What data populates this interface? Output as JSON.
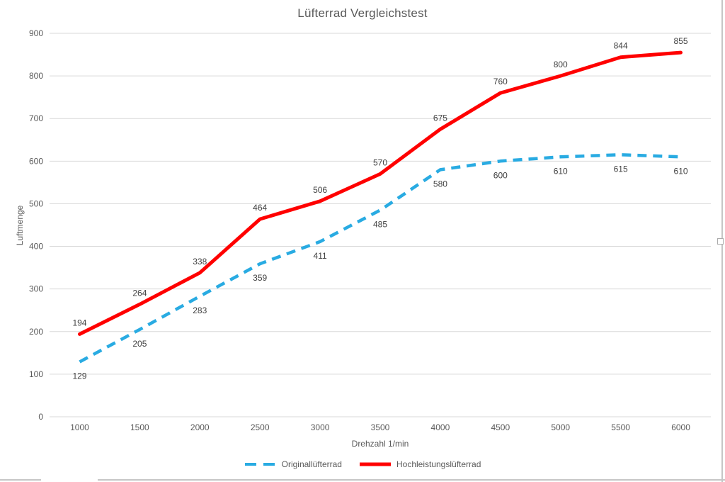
{
  "chart_data": {
    "type": "line",
    "title": "Lüfterrad Vergleichstest",
    "xlabel": "Drehzahl 1/min",
    "ylabel": "Luftmenge",
    "categories": [
      1000,
      1500,
      2000,
      2500,
      3000,
      3500,
      4000,
      4500,
      5000,
      5500,
      6000
    ],
    "series": [
      {
        "name": "Originallüfterrad",
        "color": "#29ABE2",
        "line_style": "dashed",
        "line_width": 4.5,
        "label_position": "below",
        "values": [
          129,
          205,
          283,
          359,
          411,
          485,
          580,
          600,
          610,
          615,
          610
        ]
      },
      {
        "name": "Hochleistungslüfterrad",
        "color": "#FF0000",
        "line_style": "solid",
        "line_width": 5,
        "label_position": "above",
        "values": [
          194,
          264,
          338,
          464,
          506,
          570,
          675,
          760,
          800,
          844,
          855
        ]
      }
    ],
    "ylim": [
      0,
      900
    ],
    "ytick_step": 100,
    "grid": true,
    "data_labels": true,
    "legend_position": "bottom",
    "style": {
      "gridline_color": "#D9D9D9",
      "tick_label_color": "#595959",
      "data_label_color": "#404040",
      "title_color": "#595959"
    }
  }
}
